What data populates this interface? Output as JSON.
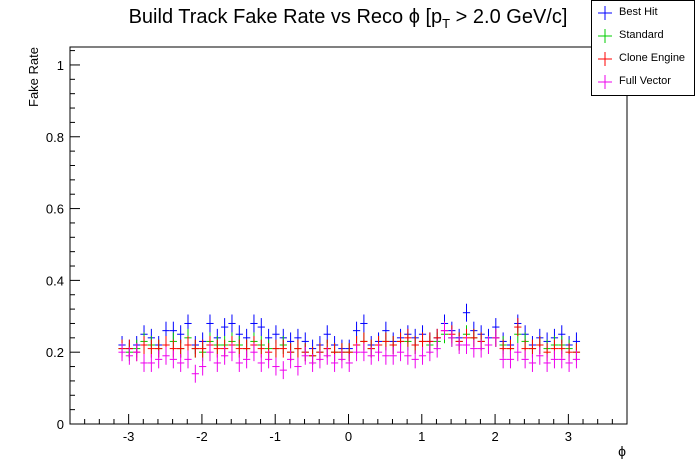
{
  "chart_data": {
    "type": "scatter",
    "title_main": "Build Track Fake Rate vs Reco ",
    "title_phi": "ϕ",
    "title_p": " [p",
    "title_sub": "T",
    "title_tail": " > 2.0 GeV/c]",
    "xlabel": "ϕ",
    "ylabel": "Fake Rate",
    "xlim": [
      -3.8,
      3.8
    ],
    "ylim": [
      0,
      1.05
    ],
    "xticks": [
      -3,
      -2,
      -1,
      0,
      1,
      2,
      3
    ],
    "xtick_labels": [
      "-3",
      "-2",
      "-1",
      "0",
      "1",
      "2",
      "3"
    ],
    "yticks": [
      0,
      0.2,
      0.4,
      0.6,
      0.8,
      1
    ],
    "ytick_labels": [
      "0",
      "0.2",
      "0.4",
      "0.6",
      "0.8",
      "1"
    ],
    "legend_position": "top-right",
    "grid": false,
    "x_bin_halfwidth": 0.0493,
    "x": [
      -3.09,
      -2.99,
      -2.89,
      -2.79,
      -2.69,
      -2.59,
      -2.49,
      -2.39,
      -2.29,
      -2.19,
      -2.09,
      -1.99,
      -1.89,
      -1.79,
      -1.69,
      -1.59,
      -1.49,
      -1.39,
      -1.29,
      -1.19,
      -1.09,
      -0.99,
      -0.89,
      -0.79,
      -0.69,
      -0.59,
      -0.49,
      -0.39,
      -0.29,
      -0.19,
      -0.09,
      0.01,
      0.11,
      0.21,
      0.31,
      0.41,
      0.51,
      0.61,
      0.71,
      0.81,
      0.91,
      1.01,
      1.11,
      1.21,
      1.31,
      1.41,
      1.51,
      1.61,
      1.71,
      1.81,
      1.91,
      2.01,
      2.11,
      2.21,
      2.31,
      2.41,
      2.51,
      2.61,
      2.71,
      2.81,
      2.91,
      3.01,
      3.11
    ],
    "series": [
      {
        "name": "Best Hit",
        "color": "#0000ff",
        "values": [
          0.22,
          0.21,
          0.22,
          0.25,
          0.24,
          0.22,
          0.26,
          0.26,
          0.25,
          0.28,
          0.22,
          0.23,
          0.28,
          0.24,
          0.27,
          0.28,
          0.25,
          0.24,
          0.28,
          0.27,
          0.24,
          0.25,
          0.24,
          0.23,
          0.24,
          0.23,
          0.21,
          0.22,
          0.25,
          0.22,
          0.21,
          0.21,
          0.26,
          0.28,
          0.22,
          0.23,
          0.26,
          0.23,
          0.24,
          0.25,
          0.24,
          0.25,
          0.23,
          0.24,
          0.28,
          0.26,
          0.24,
          0.31,
          0.26,
          0.25,
          0.24,
          0.27,
          0.23,
          0.22,
          0.28,
          0.25,
          0.22,
          0.24,
          0.23,
          0.24,
          0.25,
          0.22,
          0.23
        ],
        "err": [
          0.025,
          0.025,
          0.025,
          0.025,
          0.025,
          0.025,
          0.025,
          0.025,
          0.025,
          0.025,
          0.025,
          0.025,
          0.025,
          0.025,
          0.025,
          0.025,
          0.025,
          0.025,
          0.025,
          0.025,
          0.025,
          0.025,
          0.025,
          0.025,
          0.025,
          0.025,
          0.025,
          0.025,
          0.025,
          0.025,
          0.025,
          0.025,
          0.025,
          0.025,
          0.025,
          0.025,
          0.025,
          0.025,
          0.025,
          0.025,
          0.025,
          0.025,
          0.025,
          0.025,
          0.025,
          0.025,
          0.025,
          0.025,
          0.025,
          0.025,
          0.025,
          0.025,
          0.025,
          0.025,
          0.025,
          0.025,
          0.025,
          0.025,
          0.025,
          0.025,
          0.025,
          0.025,
          0.025
        ]
      },
      {
        "name": "Standard",
        "color": "#00cc00",
        "values": [
          0.21,
          0.2,
          0.21,
          0.23,
          0.22,
          0.21,
          0.22,
          0.23,
          0.21,
          0.24,
          0.21,
          0.2,
          0.23,
          0.22,
          0.22,
          0.23,
          0.22,
          0.21,
          0.23,
          0.22,
          0.21,
          0.21,
          0.22,
          0.2,
          0.21,
          0.2,
          0.19,
          0.2,
          0.21,
          0.2,
          0.2,
          0.2,
          0.22,
          0.23,
          0.21,
          0.22,
          0.23,
          0.22,
          0.23,
          0.23,
          0.22,
          0.23,
          0.22,
          0.23,
          0.25,
          0.24,
          0.23,
          0.25,
          0.24,
          0.23,
          0.22,
          0.24,
          0.22,
          0.21,
          0.25,
          0.23,
          0.21,
          0.22,
          0.21,
          0.22,
          0.22,
          0.21,
          0.2
        ],
        "err": [
          0.025,
          0.025,
          0.025,
          0.025,
          0.025,
          0.025,
          0.025,
          0.025,
          0.025,
          0.025,
          0.025,
          0.025,
          0.025,
          0.025,
          0.025,
          0.025,
          0.025,
          0.025,
          0.025,
          0.025,
          0.025,
          0.025,
          0.025,
          0.025,
          0.025,
          0.025,
          0.025,
          0.025,
          0.025,
          0.025,
          0.025,
          0.025,
          0.025,
          0.025,
          0.025,
          0.025,
          0.025,
          0.025,
          0.025,
          0.025,
          0.025,
          0.025,
          0.025,
          0.025,
          0.025,
          0.025,
          0.025,
          0.025,
          0.025,
          0.025,
          0.025,
          0.025,
          0.025,
          0.025,
          0.025,
          0.025,
          0.025,
          0.025,
          0.025,
          0.025,
          0.025,
          0.025,
          0.025
        ]
      },
      {
        "name": "Clone Engine",
        "color": "#ff0000",
        "values": [
          0.21,
          0.21,
          0.2,
          0.22,
          0.21,
          0.21,
          0.22,
          0.21,
          0.21,
          0.22,
          0.21,
          0.21,
          0.22,
          0.21,
          0.21,
          0.22,
          0.21,
          0.21,
          0.22,
          0.21,
          0.2,
          0.21,
          0.21,
          0.2,
          0.21,
          0.2,
          0.19,
          0.2,
          0.21,
          0.2,
          0.2,
          0.2,
          0.22,
          0.23,
          0.21,
          0.22,
          0.23,
          0.22,
          0.23,
          0.24,
          0.22,
          0.23,
          0.23,
          0.24,
          0.26,
          0.25,
          0.23,
          0.24,
          0.24,
          0.23,
          0.22,
          0.24,
          0.21,
          0.21,
          0.27,
          0.21,
          0.21,
          0.22,
          0.2,
          0.21,
          0.21,
          0.2,
          0.2
        ],
        "err": [
          0.025,
          0.025,
          0.025,
          0.025,
          0.025,
          0.025,
          0.025,
          0.025,
          0.025,
          0.025,
          0.025,
          0.025,
          0.025,
          0.025,
          0.025,
          0.025,
          0.025,
          0.025,
          0.025,
          0.025,
          0.025,
          0.025,
          0.025,
          0.025,
          0.025,
          0.025,
          0.025,
          0.025,
          0.025,
          0.025,
          0.025,
          0.025,
          0.025,
          0.025,
          0.025,
          0.025,
          0.025,
          0.025,
          0.025,
          0.025,
          0.025,
          0.025,
          0.025,
          0.025,
          0.025,
          0.025,
          0.025,
          0.025,
          0.025,
          0.025,
          0.025,
          0.025,
          0.025,
          0.025,
          0.025,
          0.025,
          0.025,
          0.025,
          0.025,
          0.025,
          0.025,
          0.025,
          0.025
        ]
      },
      {
        "name": "Full Vector",
        "color": "#ee00ee",
        "values": [
          0.2,
          0.19,
          0.2,
          0.17,
          0.17,
          0.18,
          0.19,
          0.18,
          0.17,
          0.18,
          0.14,
          0.16,
          0.2,
          0.17,
          0.19,
          0.2,
          0.17,
          0.18,
          0.2,
          0.17,
          0.18,
          0.16,
          0.15,
          0.18,
          0.16,
          0.19,
          0.17,
          0.18,
          0.19,
          0.17,
          0.18,
          0.17,
          0.2,
          0.2,
          0.19,
          0.2,
          0.19,
          0.19,
          0.2,
          0.19,
          0.18,
          0.19,
          0.2,
          0.21,
          0.26,
          0.24,
          0.22,
          0.22,
          0.21,
          0.21,
          0.22,
          0.24,
          0.18,
          0.18,
          0.2,
          0.18,
          0.17,
          0.19,
          0.17,
          0.18,
          0.18,
          0.17,
          0.18
        ],
        "err": [
          0.025,
          0.025,
          0.025,
          0.025,
          0.025,
          0.025,
          0.025,
          0.025,
          0.025,
          0.025,
          0.025,
          0.025,
          0.025,
          0.025,
          0.025,
          0.025,
          0.025,
          0.025,
          0.025,
          0.025,
          0.025,
          0.025,
          0.025,
          0.025,
          0.025,
          0.025,
          0.025,
          0.025,
          0.025,
          0.025,
          0.025,
          0.025,
          0.025,
          0.025,
          0.025,
          0.025,
          0.025,
          0.025,
          0.025,
          0.025,
          0.025,
          0.025,
          0.025,
          0.025,
          0.025,
          0.025,
          0.025,
          0.025,
          0.025,
          0.025,
          0.025,
          0.025,
          0.025,
          0.025,
          0.025,
          0.025,
          0.025,
          0.025,
          0.025,
          0.025,
          0.025,
          0.025,
          0.025
        ]
      }
    ]
  }
}
